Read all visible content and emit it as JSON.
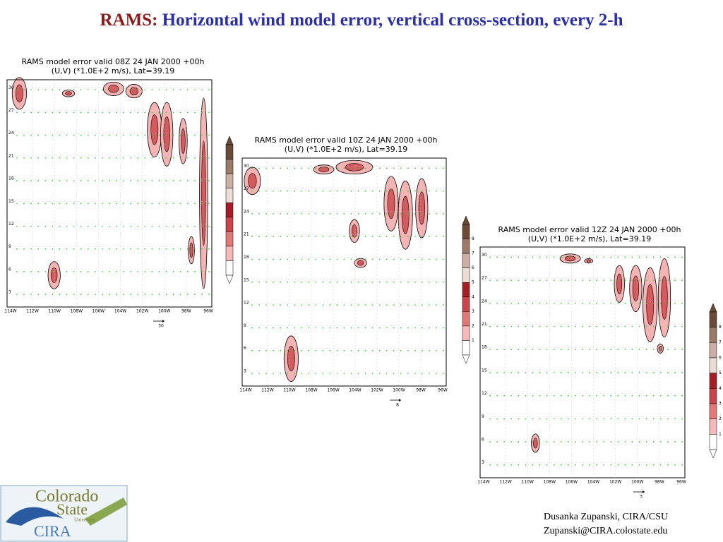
{
  "title": {
    "prefix": "RAMS:",
    "text": "Horizontal wind model error, vertical cross-section, every 2-h"
  },
  "panels": [
    {
      "header": [
        "RAMS model error valid 08Z 24 JAN 2000 +00h",
        "(U,V) (*1.0E+2 m/s), Lat=39.19"
      ],
      "yticks": [
        "30",
        "27",
        "24",
        "21",
        "18",
        "15",
        "12",
        "9",
        "6",
        "3"
      ],
      "xticks": [
        "114W",
        "112W",
        "110W",
        "108W",
        "106W",
        "104W",
        "102W",
        "100W",
        "98W",
        "96W"
      ],
      "ref": "30",
      "colorbar": []
    },
    {
      "header": [
        "RAMS model error valid 10Z 24 JAN 2000 +00h",
        "(U,V) (*1.0E+2 m/s), Lat=39.19"
      ],
      "yticks": [
        "30",
        "27",
        "24",
        "21",
        "18",
        "15",
        "12",
        "9",
        "6",
        "3"
      ],
      "xticks": [
        "114W",
        "112W",
        "110W",
        "108W",
        "106W",
        "104W",
        "102W",
        "100W",
        "98W",
        "96W"
      ],
      "ref": "8",
      "colorbar": [
        "8",
        "7",
        "6",
        "5",
        "4",
        "3",
        "2",
        "1"
      ]
    },
    {
      "header": [
        "RAMS model error valid 12Z 24 JAN 2000 +00h",
        "(U,V) (*1.0E+2 m/s), Lat=39.19"
      ],
      "yticks": [
        "30",
        "27",
        "24",
        "21",
        "18",
        "15",
        "12",
        "9",
        "6",
        "3"
      ],
      "xticks": [
        "114W",
        "112W",
        "110W",
        "108W",
        "106W",
        "104W",
        "102W",
        "100W",
        "98W",
        "96W"
      ],
      "ref": "3",
      "colorbar": [
        "8",
        "7",
        "6",
        "5",
        "4",
        "3",
        "2",
        "1"
      ]
    }
  ],
  "footer": {
    "author": "Dusanka Zupanski,  CIRA/CSU",
    "email": "Zupanski@CIRA.colostate.edu"
  },
  "logo": {
    "line1": "Colorado",
    "line2": "State",
    "line3": "University",
    "line4": "CIRA"
  }
}
